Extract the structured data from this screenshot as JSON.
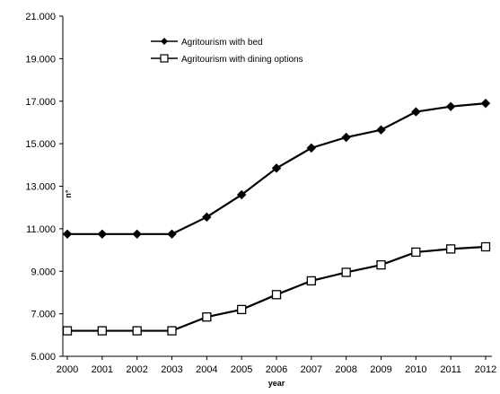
{
  "chart_data": {
    "type": "line",
    "title": "",
    "xlabel": "year",
    "ylabel": "n°",
    "ylim": [
      5000,
      21000
    ],
    "yticks": [
      5000,
      7000,
      9000,
      11000,
      13000,
      15000,
      17000,
      19000,
      21000
    ],
    "ytick_labels": [
      "5.000",
      "7.000",
      "9.000",
      "11.000",
      "13.000",
      "15.000",
      "17.000",
      "19.000",
      "21.000"
    ],
    "categories": [
      "2000",
      "2001",
      "2002",
      "2003",
      "2004",
      "2005",
      "2006",
      "2007",
      "2008",
      "2009",
      "2010",
      "2011",
      "2012"
    ],
    "grid": false,
    "legend_position": "top-center",
    "series": [
      {
        "name": "Agritourism with bed",
        "marker": "filled-diamond",
        "color": "#000000",
        "values": [
          10750,
          10750,
          10750,
          10750,
          11550,
          12600,
          13850,
          14800,
          15300,
          15650,
          16500,
          16750,
          16900
        ]
      },
      {
        "name": "Agritourism with dining options",
        "marker": "open-square",
        "color": "#000000",
        "values": [
          6200,
          6200,
          6200,
          6200,
          6850,
          7200,
          7900,
          8550,
          8950,
          9300,
          9900,
          10050,
          10150
        ]
      }
    ]
  }
}
